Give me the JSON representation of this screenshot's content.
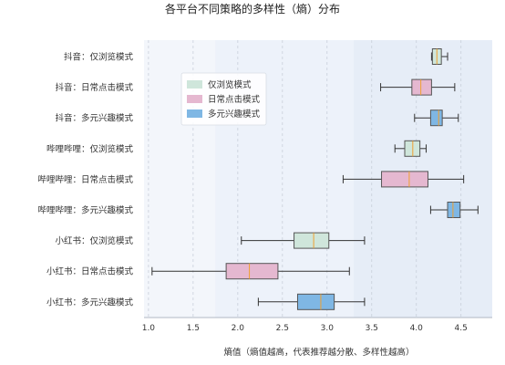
{
  "chart_data": {
    "type": "boxplot",
    "title": "各平台不同策略的多样性（熵）分布",
    "xlabel": "熵值（熵值越高，代表推荐越分散、多样性越高）",
    "ylabel": "",
    "xlim": [
      0.95,
      4.85
    ],
    "xticks": [
      "1.0",
      "1.5",
      "2.0",
      "2.5",
      "3.0",
      "3.5",
      "4.0",
      "4.5"
    ],
    "grid": "vertical-dashed",
    "legend_placement": "upper-left",
    "legend": [
      {
        "name": "仅浏览模式",
        "color": "#cfe6db"
      },
      {
        "name": "日常点击模式",
        "color": "#e5b8d0"
      },
      {
        "name": "多元兴趣模式",
        "color": "#7fb7e4"
      }
    ],
    "categories": [
      "抖音：仅浏览模式",
      "抖音：日常点击模式",
      "抖音：多元兴趣模式",
      "哔哩哔哩：仅浏览模式",
      "哔哩哔哩：日常点击模式",
      "哔哩哔哩：多元兴趣模式",
      "小红书：仅浏览模式",
      "小红书：日常点击模式",
      "小红书：多元兴趣模式"
    ],
    "boxes": [
      {
        "category": "抖音：仅浏览模式",
        "mode": "仅浏览模式",
        "min": 4.17,
        "q1": 4.18,
        "median": 4.23,
        "q3": 4.28,
        "max": 4.35
      },
      {
        "category": "抖音：日常点击模式",
        "mode": "日常点击模式",
        "min": 3.6,
        "q1": 3.95,
        "median": 4.05,
        "q3": 4.17,
        "max": 4.43
      },
      {
        "category": "抖音：多元兴趣模式",
        "mode": "多元兴趣模式",
        "min": 3.98,
        "q1": 4.16,
        "median": 4.25,
        "q3": 4.29,
        "max": 4.47
      },
      {
        "category": "哔哩哔哩：仅浏览模式",
        "mode": "仅浏览模式",
        "min": 3.76,
        "q1": 3.87,
        "median": 3.96,
        "q3": 4.04,
        "max": 4.11
      },
      {
        "category": "哔哩哔哩：日常点击模式",
        "mode": "日常点击模式",
        "min": 3.18,
        "q1": 3.61,
        "median": 3.92,
        "q3": 4.13,
        "max": 4.53
      },
      {
        "category": "哔哩哔哩：多元兴趣模式",
        "mode": "多元兴趣模式",
        "min": 4.16,
        "q1": 4.35,
        "median": 4.41,
        "q3": 4.49,
        "max": 4.69
      },
      {
        "category": "小红书：仅浏览模式",
        "mode": "仅浏览模式",
        "min": 2.04,
        "q1": 2.63,
        "median": 2.85,
        "q3": 3.02,
        "max": 3.42
      },
      {
        "category": "小红书：日常点击模式",
        "mode": "日常点击模式",
        "min": 1.04,
        "q1": 1.87,
        "median": 2.13,
        "q3": 2.45,
        "max": 3.25
      },
      {
        "category": "小红书：多元兴趣模式",
        "mode": "多元兴趣模式",
        "min": 2.23,
        "q1": 2.67,
        "median": 2.93,
        "q3": 3.08,
        "max": 3.42
      }
    ]
  },
  "colors": {
    "plot_bg": "#e8eef8",
    "band_1": "#f3f6fb",
    "band_2": "#edf2fa",
    "band_3": "#e6edf7",
    "box_border": "#555555",
    "median_line": "#f0a030",
    "whisker": "#333333",
    "grid": "#c8cfda"
  }
}
